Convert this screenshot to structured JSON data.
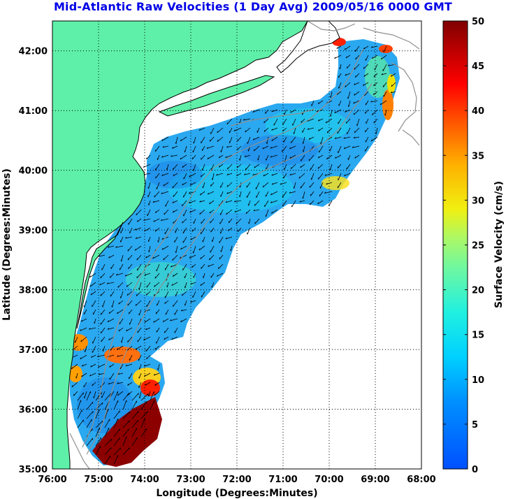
{
  "title": "Mid-Atlantic Raw Velocities (1 Day Avg) 2009/05/16 0000 GMT",
  "map": {
    "xlabel": "Longitude (Degrees:Minutes)",
    "ylabel": "Latitude (Degrees:Minutes)",
    "x_ticks": [
      "76:00",
      "75:00",
      "74:00",
      "73:00",
      "72:00",
      "71:00",
      "70:00",
      "69:00",
      "68:00"
    ],
    "y_ticks": [
      "35:00",
      "36:00",
      "37:00",
      "38:00",
      "39:00",
      "40:00",
      "41:00",
      "42:00"
    ],
    "lon_range": [
      -76,
      -68
    ],
    "lat_range": [
      35,
      42.5
    ],
    "grid": "dotted",
    "colors": {
      "land": "#5ef0a8",
      "coast": "#000000",
      "bathymetry": "#909090",
      "vectors": "#000000"
    }
  },
  "colorbar": {
    "label": "Surface Velocity (cm/s)",
    "ticks": [
      "0",
      "5",
      "10",
      "15",
      "20",
      "25",
      "30",
      "35",
      "40",
      "45",
      "50"
    ],
    "range": [
      0,
      50
    ],
    "colormap": "jet"
  }
}
